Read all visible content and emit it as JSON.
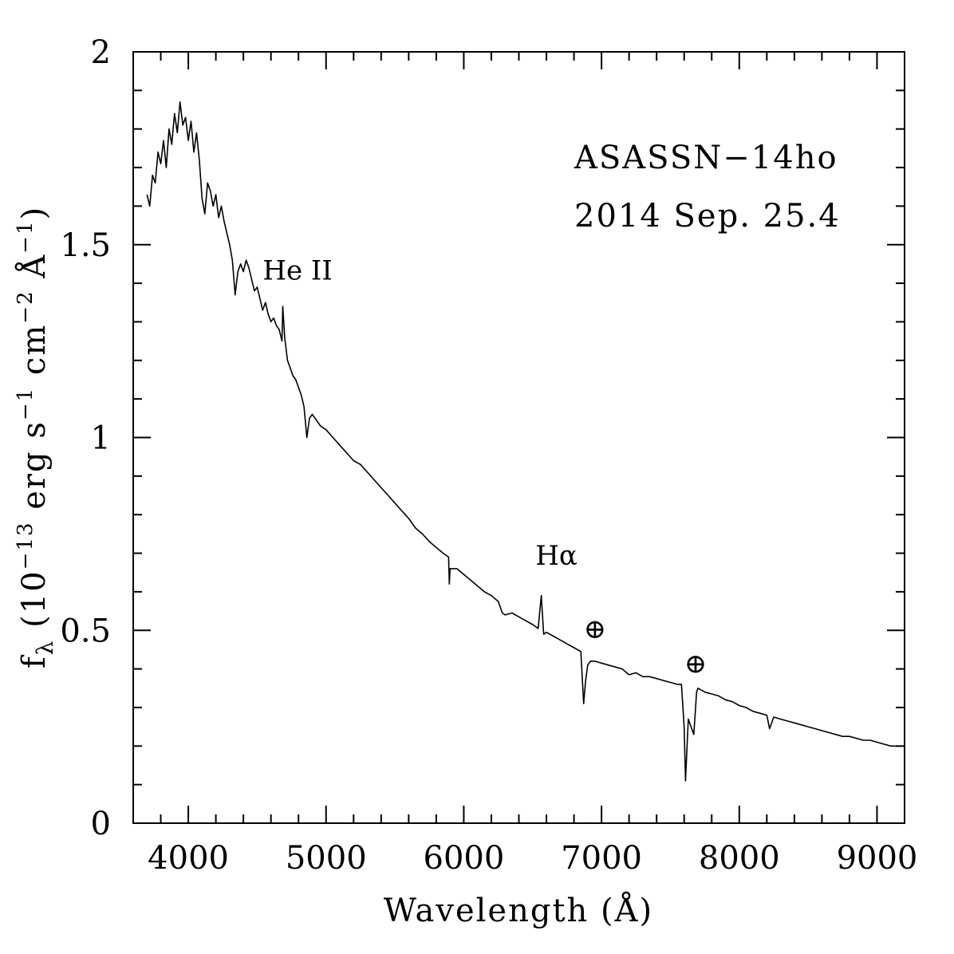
{
  "chart_data": {
    "type": "line",
    "title": "",
    "xlabel": "Wavelength (Å)",
    "ylabel": "f_λ (10^-13 erg s^-1 cm^-2 Å^-1)",
    "ylabel_parts": {
      "f": "f",
      "lambda_sub": "λ",
      "p1": " (10",
      "e1": "−13",
      "p2": " erg s",
      "e2": "−1",
      "p3": " cm",
      "e3": "−2",
      "p4": " Å",
      "e4": "−1",
      "p5": ")"
    },
    "xlim": [
      3600,
      9200
    ],
    "ylim": [
      0,
      2
    ],
    "x_ticks_major": [
      4000,
      5000,
      6000,
      7000,
      8000,
      9000
    ],
    "x_tick_labels": [
      "4000",
      "5000",
      "6000",
      "7000",
      "8000",
      "9000"
    ],
    "y_ticks_major": [
      0,
      0.5,
      1,
      1.5,
      2
    ],
    "y_tick_labels": [
      "0",
      "0.5",
      "1",
      "1.5",
      "2"
    ],
    "x_minor_step": 200,
    "y_minor_step": 0.1,
    "grid": false,
    "legend": "none",
    "info_lines": [
      "ASASSN−14ho",
      "2014 Sep. 25.4"
    ],
    "annotations": [
      {
        "text": "He II",
        "x": 4540,
        "y": 1.41
      },
      {
        "text": "Hα",
        "x": 6520,
        "y": 0.67
      },
      {
        "text": "⊕",
        "x": 6870,
        "y": 0.48
      },
      {
        "text": "⊕",
        "x": 7600,
        "y": 0.39
      }
    ],
    "series": [
      {
        "points": [
          [
            3700,
            1.63
          ],
          [
            3720,
            1.6
          ],
          [
            3740,
            1.68
          ],
          [
            3760,
            1.66
          ],
          [
            3780,
            1.74
          ],
          [
            3800,
            1.71
          ],
          [
            3820,
            1.77
          ],
          [
            3840,
            1.7
          ],
          [
            3860,
            1.8
          ],
          [
            3880,
            1.76
          ],
          [
            3900,
            1.84
          ],
          [
            3920,
            1.79
          ],
          [
            3940,
            1.87
          ],
          [
            3960,
            1.81
          ],
          [
            3980,
            1.83
          ],
          [
            4000,
            1.77
          ],
          [
            4020,
            1.82
          ],
          [
            4040,
            1.74
          ],
          [
            4060,
            1.79
          ],
          [
            4080,
            1.72
          ],
          [
            4100,
            1.62
          ],
          [
            4120,
            1.58
          ],
          [
            4140,
            1.66
          ],
          [
            4160,
            1.64
          ],
          [
            4180,
            1.6
          ],
          [
            4200,
            1.63
          ],
          [
            4220,
            1.57
          ],
          [
            4240,
            1.6
          ],
          [
            4260,
            1.56
          ],
          [
            4280,
            1.53
          ],
          [
            4300,
            1.5
          ],
          [
            4320,
            1.46
          ],
          [
            4340,
            1.37
          ],
          [
            4360,
            1.43
          ],
          [
            4380,
            1.45
          ],
          [
            4400,
            1.43
          ],
          [
            4420,
            1.46
          ],
          [
            4440,
            1.44
          ],
          [
            4460,
            1.41
          ],
          [
            4480,
            1.38
          ],
          [
            4500,
            1.39
          ],
          [
            4520,
            1.36
          ],
          [
            4540,
            1.33
          ],
          [
            4560,
            1.35
          ],
          [
            4580,
            1.32
          ],
          [
            4600,
            1.3
          ],
          [
            4620,
            1.31
          ],
          [
            4640,
            1.29
          ],
          [
            4660,
            1.28
          ],
          [
            4680,
            1.25
          ],
          [
            4686,
            1.34
          ],
          [
            4700,
            1.26
          ],
          [
            4720,
            1.2
          ],
          [
            4740,
            1.18
          ],
          [
            4760,
            1.16
          ],
          [
            4780,
            1.15
          ],
          [
            4800,
            1.13
          ],
          [
            4820,
            1.11
          ],
          [
            4840,
            1.08
          ],
          [
            4861,
            1.0
          ],
          [
            4880,
            1.05
          ],
          [
            4900,
            1.06
          ],
          [
            4920,
            1.05
          ],
          [
            4940,
            1.04
          ],
          [
            4960,
            1.03
          ],
          [
            5000,
            1.02
          ],
          [
            5050,
            1.0
          ],
          [
            5100,
            0.98
          ],
          [
            5150,
            0.96
          ],
          [
            5200,
            0.94
          ],
          [
            5250,
            0.93
          ],
          [
            5300,
            0.91
          ],
          [
            5350,
            0.89
          ],
          [
            5400,
            0.87
          ],
          [
            5450,
            0.85
          ],
          [
            5500,
            0.83
          ],
          [
            5550,
            0.81
          ],
          [
            5600,
            0.79
          ],
          [
            5650,
            0.765
          ],
          [
            5700,
            0.75
          ],
          [
            5750,
            0.73
          ],
          [
            5800,
            0.715
          ],
          [
            5850,
            0.7
          ],
          [
            5890,
            0.69
          ],
          [
            5895,
            0.62
          ],
          [
            5900,
            0.66
          ],
          [
            5950,
            0.66
          ],
          [
            6000,
            0.645
          ],
          [
            6050,
            0.63
          ],
          [
            6100,
            0.615
          ],
          [
            6150,
            0.6
          ],
          [
            6200,
            0.59
          ],
          [
            6250,
            0.575
          ],
          [
            6280,
            0.545
          ],
          [
            6300,
            0.54
          ],
          [
            6350,
            0.545
          ],
          [
            6400,
            0.535
          ],
          [
            6450,
            0.525
          ],
          [
            6500,
            0.515
          ],
          [
            6540,
            0.505
          ],
          [
            6563,
            0.59
          ],
          [
            6580,
            0.49
          ],
          [
            6600,
            0.495
          ],
          [
            6650,
            0.485
          ],
          [
            6700,
            0.475
          ],
          [
            6750,
            0.465
          ],
          [
            6800,
            0.455
          ],
          [
            6850,
            0.445
          ],
          [
            6870,
            0.31
          ],
          [
            6885,
            0.37
          ],
          [
            6900,
            0.41
          ],
          [
            6920,
            0.42
          ],
          [
            6950,
            0.42
          ],
          [
            7000,
            0.415
          ],
          [
            7050,
            0.41
          ],
          [
            7100,
            0.405
          ],
          [
            7150,
            0.4
          ],
          [
            7200,
            0.385
          ],
          [
            7250,
            0.39
          ],
          [
            7300,
            0.38
          ],
          [
            7350,
            0.38
          ],
          [
            7400,
            0.375
          ],
          [
            7450,
            0.37
          ],
          [
            7500,
            0.365
          ],
          [
            7550,
            0.36
          ],
          [
            7580,
            0.36
          ],
          [
            7600,
            0.25
          ],
          [
            7610,
            0.11
          ],
          [
            7630,
            0.27
          ],
          [
            7650,
            0.25
          ],
          [
            7670,
            0.23
          ],
          [
            7690,
            0.34
          ],
          [
            7700,
            0.35
          ],
          [
            7750,
            0.34
          ],
          [
            7800,
            0.335
          ],
          [
            7850,
            0.33
          ],
          [
            7900,
            0.32
          ],
          [
            7950,
            0.315
          ],
          [
            8000,
            0.305
          ],
          [
            8050,
            0.3
          ],
          [
            8100,
            0.29
          ],
          [
            8150,
            0.285
          ],
          [
            8200,
            0.28
          ],
          [
            8220,
            0.245
          ],
          [
            8250,
            0.275
          ],
          [
            8300,
            0.27
          ],
          [
            8350,
            0.265
          ],
          [
            8400,
            0.26
          ],
          [
            8450,
            0.255
          ],
          [
            8500,
            0.25
          ],
          [
            8550,
            0.245
          ],
          [
            8600,
            0.24
          ],
          [
            8650,
            0.235
          ],
          [
            8700,
            0.23
          ],
          [
            8750,
            0.225
          ],
          [
            8800,
            0.225
          ],
          [
            8850,
            0.22
          ],
          [
            8900,
            0.215
          ],
          [
            8950,
            0.215
          ],
          [
            9000,
            0.21
          ],
          [
            9050,
            0.205
          ],
          [
            9100,
            0.2
          ],
          [
            9150,
            0.2
          ],
          [
            9190,
            0.2
          ]
        ]
      }
    ]
  }
}
